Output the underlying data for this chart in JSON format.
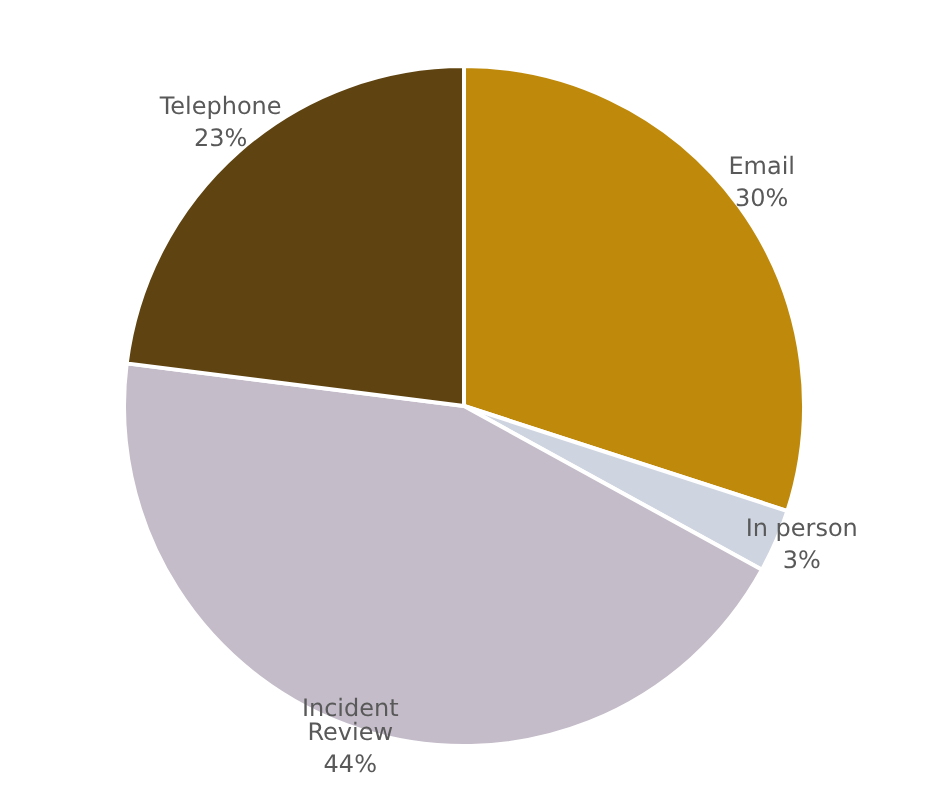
{
  "chart_data": {
    "type": "pie",
    "categories": [
      "Email",
      "In person",
      "Incident Review",
      "Telephone"
    ],
    "values": [
      30,
      3,
      44,
      23
    ],
    "value_labels": [
      "30%",
      "3%",
      "44%",
      "23%"
    ],
    "colors": [
      "#bf8a0c",
      "#cfd5e0",
      "#c4bcc9",
      "#5f4411"
    ],
    "legend": false
  }
}
